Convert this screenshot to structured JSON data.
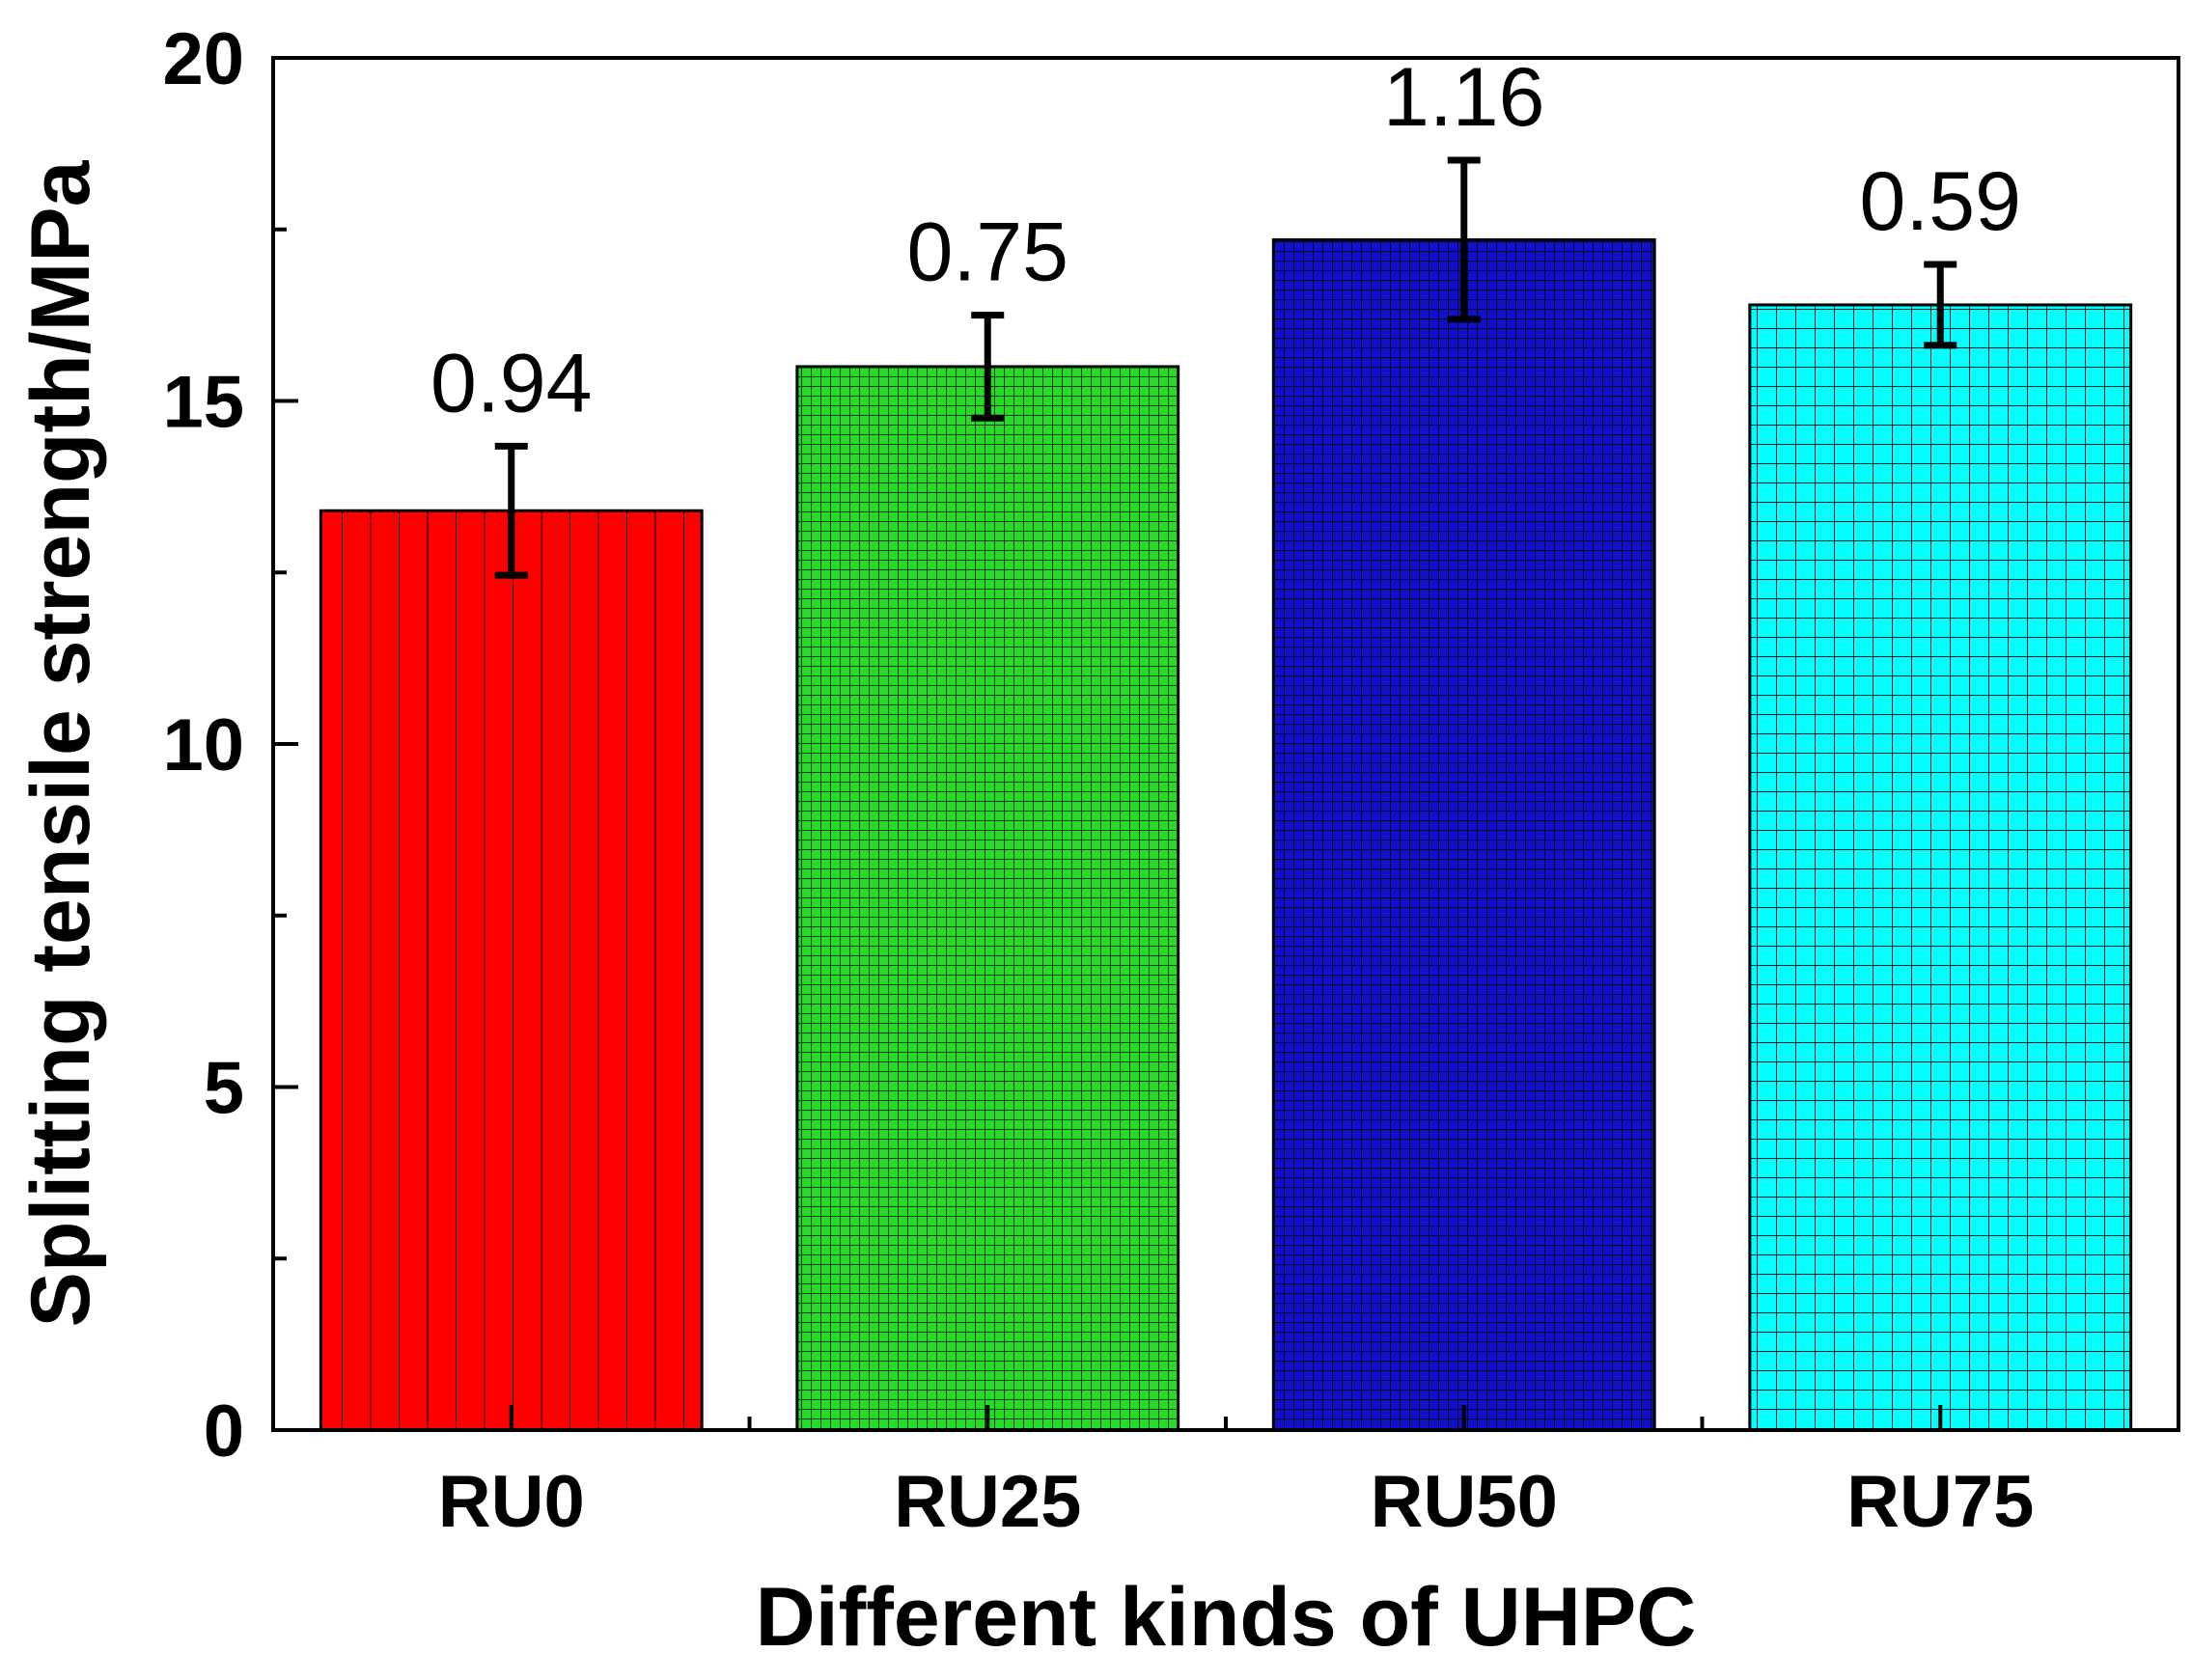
{
  "chart_data": {
    "type": "bar",
    "title": "",
    "xlabel": "Different kinds  of UHPC",
    "ylabel": "Splitting tensile strength/MPa",
    "categories": [
      "RU0",
      "RU25",
      "RU50",
      "RU75"
    ],
    "values": [
      13.4,
      15.5,
      17.35,
      16.4
    ],
    "errors": [
      0.94,
      0.75,
      1.16,
      0.59
    ],
    "error_labels": [
      "0.94",
      "0.75",
      "1.16",
      "0.59"
    ],
    "colors": [
      "#ff0000",
      "#22dd22",
      "#1111cc",
      "#00ffff"
    ],
    "patterns": [
      "vertical-lines",
      "fine-grid",
      "fine-grid",
      "coarse-grid"
    ],
    "ylim": [
      0,
      20
    ],
    "yticks": [
      "0",
      "5",
      "10",
      "15",
      "20"
    ],
    "grid": false,
    "legend": "none"
  }
}
